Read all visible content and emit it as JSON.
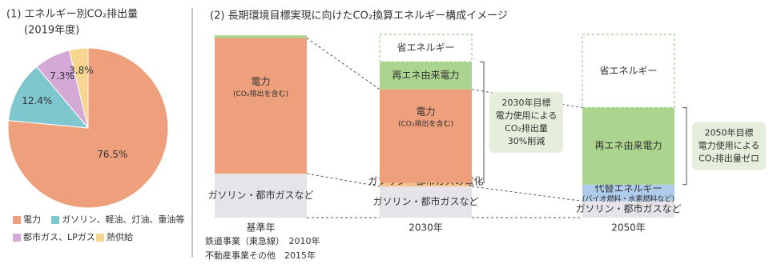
{
  "chart_data": [
    {
      "type": "pie",
      "title": "(1) エネルギー別CO₂排出量",
      "subtitle": "(2019年度)",
      "categories": [
        "電力",
        "ガソリン、軽油、灯油、重油等",
        "都市ガス、LPガス",
        "熱供給"
      ],
      "values": [
        76.5,
        12.4,
        7.3,
        3.8
      ],
      "value_labels": [
        "76.5%",
        "12.4%",
        "7.3%",
        "3.8%"
      ],
      "colors": [
        "#ee9f7b",
        "#7fc7cf",
        "#d5a9d5",
        "#f6d58e"
      ]
    },
    {
      "type": "stacked_bar",
      "title": "(2) 長期環境目標実現に向けたCO₂換算エネルギー構成イメージ",
      "categories": [
        "基準年",
        "2030年",
        "2050年"
      ],
      "category_notes": [
        [
          "鉄道事業（東急線）　2010年",
          "不動産事業その他　2015年"
        ],
        [],
        []
      ],
      "ylim": [
        0,
        100
      ],
      "series": [
        {
          "name": "ガソリン・都市ガスなど",
          "color": "#e6e4e9",
          "values": [
            24,
            17,
            9
          ]
        },
        {
          "name": "ガソリン・都市ガスの電化",
          "color": "#f4c08c",
          "values": [
            null,
            2,
            null
          ]
        },
        {
          "name": "代替エネルギー",
          "note": "(バイオ燃料・水素燃料など)",
          "color": "#aecbea",
          "values": [
            null,
            null,
            9
          ]
        },
        {
          "name": "電力",
          "note": "(CO₂排出を含む)",
          "color": "#ee9f7b",
          "values": [
            74,
            51,
            null
          ]
        },
        {
          "name": "再エネ由来電力",
          "color": "#abd48f",
          "values": [
            1.5,
            15,
            42
          ]
        },
        {
          "name": "省エネルギー",
          "color": "#7cc26a",
          "dashed": true,
          "values": [
            null,
            15,
            40
          ]
        }
      ],
      "annotations": [
        {
          "lines": [
            "2030年目標",
            "電力使用による",
            "CO₂排出量",
            "30%削減"
          ]
        },
        {
          "lines": [
            "2050年目標",
            "電力使用による",
            "CO₂排出量ゼロ"
          ]
        }
      ]
    }
  ]
}
